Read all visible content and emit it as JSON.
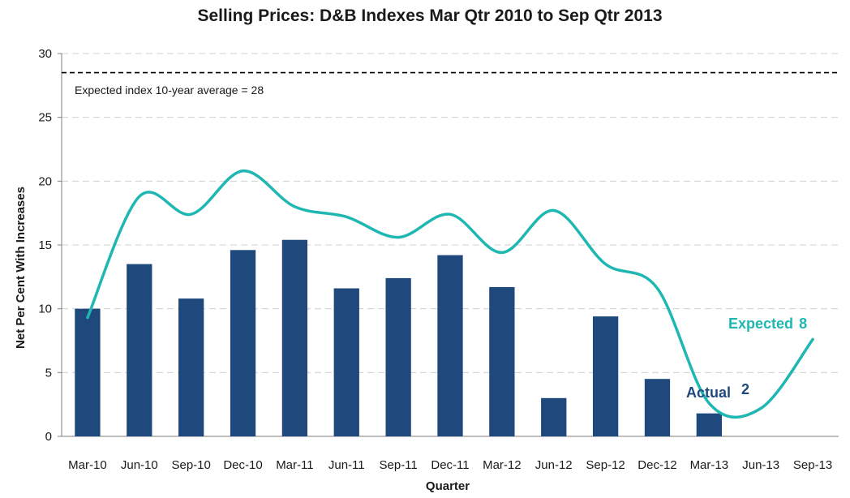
{
  "chart_data": {
    "type": "bar",
    "title": "Selling Prices: D&B Indexes Mar Qtr 2010 to Sep Qtr 2013",
    "xlabel": "Quarter",
    "ylabel": "Net Per Cent With Increases",
    "ylim": [
      0,
      30
    ],
    "yticks": [
      "0",
      "5",
      "10",
      "15",
      "20",
      "25",
      "30"
    ],
    "grid": true,
    "categories": [
      "Mar-10",
      "Jun-10",
      "Sep-10",
      "Dec-10",
      "Mar-11",
      "Jun-11",
      "Sep-11",
      "Dec-11",
      "Mar-12",
      "Jun-12",
      "Sep-12",
      "Dec-12",
      "Mar-13",
      "Jun-13",
      "Sep-13"
    ],
    "series": [
      {
        "name": "Actual",
        "type": "bar",
        "color": "#1f497d",
        "values": [
          10,
          13.5,
          10.8,
          14.6,
          15.4,
          11.6,
          12.4,
          14.2,
          11.7,
          3.0,
          9.4,
          4.5,
          1.8,
          null,
          null
        ]
      },
      {
        "name": "Expected",
        "type": "line",
        "color": "#1fb7b2",
        "values": [
          9.3,
          18.8,
          17.4,
          20.8,
          18.0,
          17.2,
          15.6,
          17.4,
          14.4,
          17.7,
          13.5,
          11.6,
          2.6,
          2.2,
          7.6
        ]
      }
    ],
    "reference_line": {
      "value": 28.5,
      "label": "Expected index 10-year average = 28",
      "color": "#000000"
    },
    "annotations": {
      "actual_label": "Actual",
      "actual_value": "2",
      "expected_label": "Expected",
      "expected_value": "8"
    }
  }
}
